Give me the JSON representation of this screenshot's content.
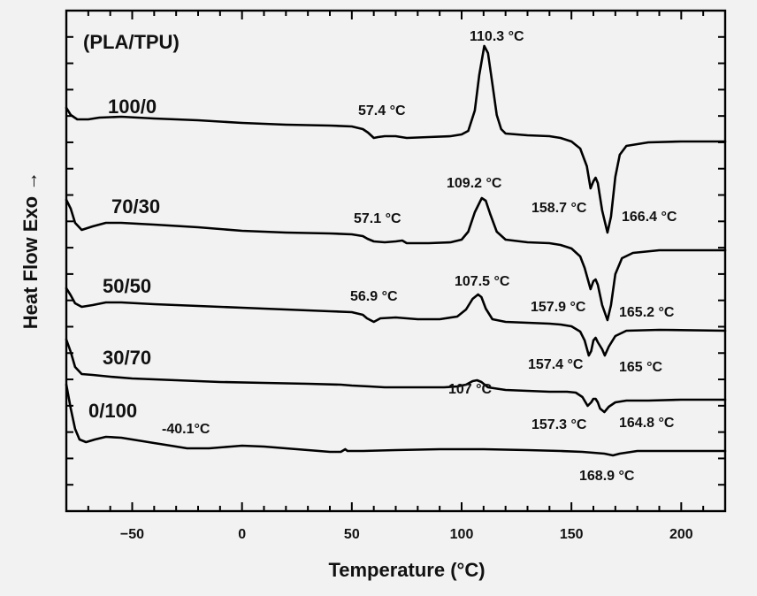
{
  "chart_data": {
    "type": "line",
    "title": "(PLA/TPU)",
    "xlabel": "Temperature (°C)",
    "ylabel": "Heat Flow Exo →",
    "xlim": [
      -80,
      220
    ],
    "xticks": [
      -50,
      0,
      50,
      100,
      150,
      200
    ],
    "yticks_count": 18,
    "grid": false,
    "series": [
      {
        "name": "100/0",
        "points": [
          [
            -80,
            122
          ],
          [
            -78,
            130
          ],
          [
            -75,
            135
          ],
          [
            -70,
            135
          ],
          [
            -65,
            133
          ],
          [
            -55,
            132
          ],
          [
            -40,
            134
          ],
          [
            -20,
            136
          ],
          [
            0,
            139
          ],
          [
            20,
            141
          ],
          [
            40,
            142
          ],
          [
            50,
            143
          ],
          [
            55,
            146
          ],
          [
            57.4,
            150
          ],
          [
            60,
            156
          ],
          [
            62,
            155
          ],
          [
            65,
            154
          ],
          [
            70,
            154
          ],
          [
            75,
            156
          ],
          [
            85,
            155
          ],
          [
            95,
            154
          ],
          [
            100,
            152
          ],
          [
            103,
            148
          ],
          [
            106,
            125
          ],
          [
            108,
            85
          ],
          [
            110.3,
            52
          ],
          [
            112,
            60
          ],
          [
            114,
            95
          ],
          [
            116,
            130
          ],
          [
            118,
            146
          ],
          [
            120,
            151
          ],
          [
            130,
            153
          ],
          [
            140,
            154
          ],
          [
            145,
            156
          ],
          [
            150,
            160
          ],
          [
            154,
            168
          ],
          [
            157,
            188
          ],
          [
            158.7,
            213
          ],
          [
            160,
            205
          ],
          [
            161,
            201
          ],
          [
            162,
            207
          ],
          [
            164,
            238
          ],
          [
            166.4,
            263
          ],
          [
            168,
            245
          ],
          [
            170,
            200
          ],
          [
            172,
            175
          ],
          [
            175,
            165
          ],
          [
            185,
            161
          ],
          [
            200,
            160
          ],
          [
            220,
            160
          ]
        ]
      },
      {
        "name": "70/30",
        "points": [
          [
            -80,
            226
          ],
          [
            -78,
            236
          ],
          [
            -76,
            252
          ],
          [
            -73,
            260
          ],
          [
            -68,
            256
          ],
          [
            -62,
            252
          ],
          [
            -55,
            252
          ],
          [
            -40,
            254
          ],
          [
            -20,
            257
          ],
          [
            0,
            261
          ],
          [
            20,
            263
          ],
          [
            40,
            264
          ],
          [
            50,
            265
          ],
          [
            55,
            267
          ],
          [
            57.1,
            270
          ],
          [
            60,
            273
          ],
          [
            65,
            274
          ],
          [
            70,
            273
          ],
          [
            73,
            272
          ],
          [
            75,
            275
          ],
          [
            85,
            275
          ],
          [
            95,
            274
          ],
          [
            100,
            271
          ],
          [
            103,
            262
          ],
          [
            106,
            240
          ],
          [
            109.2,
            224
          ],
          [
            111,
            227
          ],
          [
            113,
            242
          ],
          [
            116,
            262
          ],
          [
            120,
            271
          ],
          [
            130,
            274
          ],
          [
            140,
            275
          ],
          [
            145,
            277
          ],
          [
            150,
            281
          ],
          [
            154,
            290
          ],
          [
            156,
            303
          ],
          [
            158.7,
            327
          ],
          [
            160,
            318
          ],
          [
            161,
            316
          ],
          [
            162,
            322
          ],
          [
            164,
            345
          ],
          [
            166.4,
            362
          ],
          [
            168,
            345
          ],
          [
            170,
            310
          ],
          [
            173,
            292
          ],
          [
            178,
            286
          ],
          [
            190,
            283
          ],
          [
            220,
            283
          ]
        ]
      },
      {
        "name": "50/50",
        "points": [
          [
            -80,
            326
          ],
          [
            -78,
            334
          ],
          [
            -76,
            343
          ],
          [
            -73,
            347
          ],
          [
            -68,
            345
          ],
          [
            -62,
            342
          ],
          [
            -55,
            342
          ],
          [
            -40,
            344
          ],
          [
            -20,
            346
          ],
          [
            0,
            348
          ],
          [
            20,
            350
          ],
          [
            40,
            352
          ],
          [
            50,
            353
          ],
          [
            55,
            356
          ],
          [
            56.9,
            360
          ],
          [
            60,
            364
          ],
          [
            63,
            360
          ],
          [
            70,
            359
          ],
          [
            80,
            361
          ],
          [
            90,
            361
          ],
          [
            98,
            358
          ],
          [
            102,
            350
          ],
          [
            105,
            338
          ],
          [
            107.5,
            333
          ],
          [
            109,
            336
          ],
          [
            111,
            349
          ],
          [
            114,
            361
          ],
          [
            120,
            364
          ],
          [
            130,
            365
          ],
          [
            140,
            366
          ],
          [
            145,
            367
          ],
          [
            150,
            369
          ],
          [
            154,
            375
          ],
          [
            156,
            385
          ],
          [
            157.9,
            402
          ],
          [
            159,
            397
          ],
          [
            160,
            385
          ],
          [
            161,
            382
          ],
          [
            162,
            387
          ],
          [
            164,
            395
          ],
          [
            165.2,
            402
          ],
          [
            167,
            392
          ],
          [
            170,
            380
          ],
          [
            175,
            374
          ],
          [
            190,
            373
          ],
          [
            220,
            374
          ]
        ]
      },
      {
        "name": "30/70",
        "points": [
          [
            -80,
            384
          ],
          [
            -78,
            398
          ],
          [
            -76,
            415
          ],
          [
            -73,
            423
          ],
          [
            -68,
            424
          ],
          [
            -60,
            426
          ],
          [
            -50,
            428
          ],
          [
            -30,
            430
          ],
          [
            -10,
            432
          ],
          [
            10,
            433
          ],
          [
            30,
            434
          ],
          [
            45,
            435
          ],
          [
            50,
            436
          ],
          [
            58,
            437
          ],
          [
            65,
            438
          ],
          [
            75,
            438
          ],
          [
            85,
            438
          ],
          [
            92,
            438
          ],
          [
            98,
            437
          ],
          [
            102,
            435
          ],
          [
            105,
            431
          ],
          [
            107,
            430
          ],
          [
            109,
            432
          ],
          [
            112,
            438
          ],
          [
            120,
            441
          ],
          [
            130,
            442
          ],
          [
            140,
            443
          ],
          [
            148,
            443
          ],
          [
            152,
            444
          ],
          [
            155,
            449
          ],
          [
            157.4,
            459
          ],
          [
            159,
            455
          ],
          [
            160,
            451
          ],
          [
            161,
            451
          ],
          [
            162,
            455
          ],
          [
            163,
            462
          ],
          [
            165,
            466
          ],
          [
            167,
            460
          ],
          [
            170,
            455
          ],
          [
            175,
            453
          ],
          [
            185,
            453
          ],
          [
            200,
            452
          ],
          [
            220,
            452
          ]
        ]
      },
      {
        "name": "0/100",
        "points": [
          [
            -80,
            435
          ],
          [
            -78,
            462
          ],
          [
            -76,
            485
          ],
          [
            -74,
            497
          ],
          [
            -71,
            500
          ],
          [
            -67,
            497
          ],
          [
            -62,
            494
          ],
          [
            -55,
            495
          ],
          [
            -45,
            499
          ],
          [
            -40.1,
            501
          ],
          [
            -35,
            503
          ],
          [
            -25,
            507
          ],
          [
            -15,
            507
          ],
          [
            -5,
            505
          ],
          [
            0,
            504
          ],
          [
            10,
            505
          ],
          [
            20,
            507
          ],
          [
            30,
            509
          ],
          [
            40,
            511
          ],
          [
            45,
            511
          ],
          [
            47,
            508
          ],
          [
            48,
            510
          ],
          [
            55,
            510
          ],
          [
            70,
            509
          ],
          [
            90,
            508
          ],
          [
            110,
            508
          ],
          [
            130,
            509
          ],
          [
            145,
            510
          ],
          [
            155,
            511
          ],
          [
            160,
            512
          ],
          [
            165,
            513
          ],
          [
            168.9,
            515
          ],
          [
            172,
            513
          ],
          [
            180,
            510
          ],
          [
            200,
            510
          ],
          [
            220,
            510
          ]
        ]
      }
    ],
    "series_labels": [
      "100/0",
      "70/30",
      "50/50",
      "30/70",
      "0/100"
    ],
    "annotations": [
      {
        "text": "110.3 °C"
      },
      {
        "text": "57.4 °C"
      },
      {
        "text": "109.2 °C"
      },
      {
        "text": "158.7 °C"
      },
      {
        "text": "166.4 °C"
      },
      {
        "text": "57.1 °C"
      },
      {
        "text": "107.5 °C"
      },
      {
        "text": "56.9 °C"
      },
      {
        "text": "157.9 °C"
      },
      {
        "text": "165.2 °C"
      },
      {
        "text": "107 °C"
      },
      {
        "text": "157.4 °C"
      },
      {
        "text": "165 °C"
      },
      {
        "text": "-40.1°C"
      },
      {
        "text": "157.3 °C"
      },
      {
        "text": "164.8 °C"
      },
      {
        "text": "168.9 °C"
      }
    ]
  }
}
